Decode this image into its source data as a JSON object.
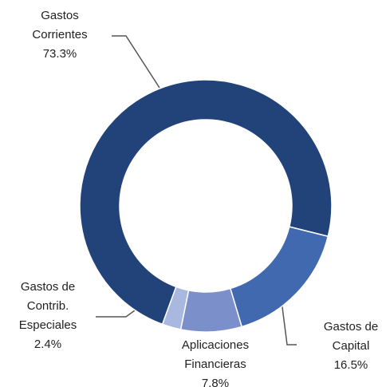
{
  "chart_data": {
    "type": "donut",
    "categories": [
      [
        "Gastos",
        "Corrientes"
      ],
      [
        "Gastos de",
        "Capital"
      ],
      [
        "Aplicaciones",
        "Financieras"
      ],
      [
        "Gastos de",
        "Contrib.",
        "Especiales"
      ]
    ],
    "values": [
      73.3,
      16.5,
      7.8,
      2.4
    ],
    "value_labels": [
      "73.3%",
      "16.5%",
      "7.8%",
      "2.4%"
    ],
    "colors": [
      "#22427a",
      "#4169b0",
      "#7b8fcb",
      "#a8b8de"
    ]
  }
}
